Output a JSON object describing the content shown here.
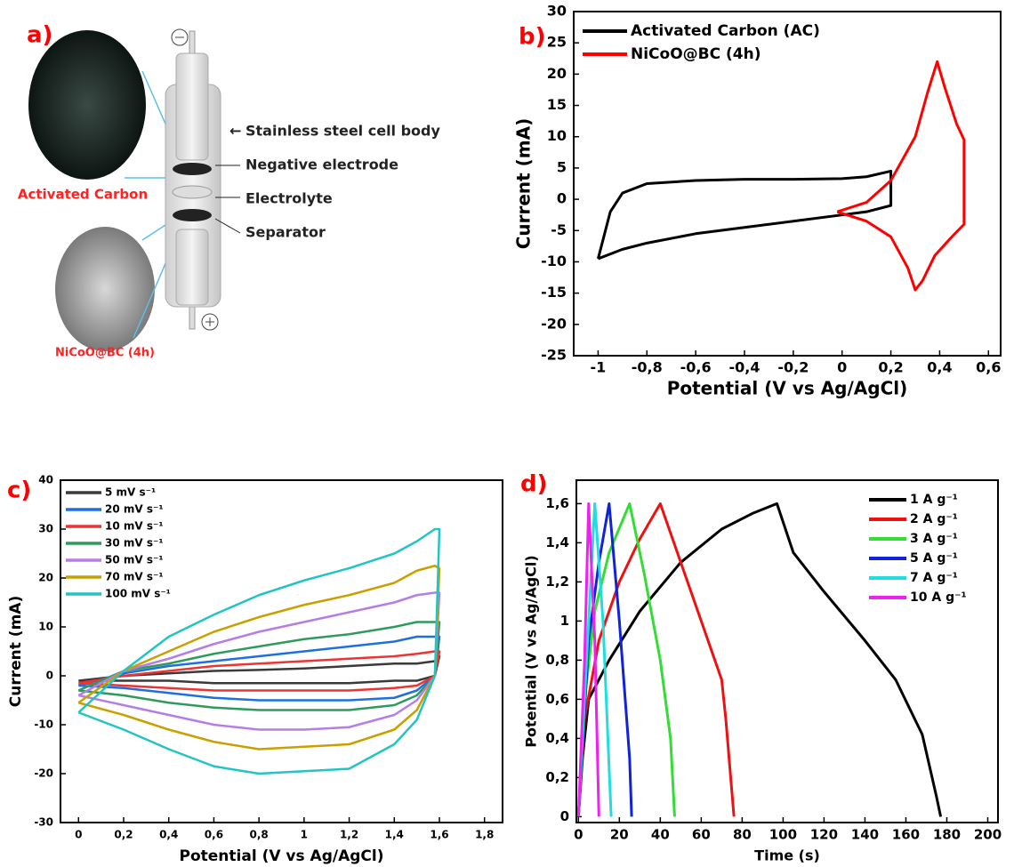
{
  "diagram": {
    "panel_label": "a)",
    "parts": [
      "Stainless steel cell body",
      "Negative electrode",
      "Electrolyte",
      "Separator"
    ],
    "top_material": "Activated Carbon",
    "bottom_material": "NiCoO@BC (4h)"
  },
  "chart_data": [
    {
      "type": "line",
      "panel_label": "b)",
      "xlabel": "Potential (V vs Ag/AgCl)",
      "ylabel": "Current (mA)",
      "legend": "upper left",
      "xlim": [
        -1.1,
        0.65
      ],
      "ylim": [
        -25,
        30
      ],
      "xticks": [
        -1,
        {
          "value": -0.8,
          "label": "-0,8"
        },
        {
          "value": -0.6,
          "label": "-0,6"
        },
        {
          "value": -0.4,
          "label": "-0,4"
        },
        {
          "value": -0.2,
          "label": "-0,2"
        },
        0,
        {
          "value": 0.2,
          "label": "0,2"
        },
        {
          "value": 0.4,
          "label": "0,4"
        },
        {
          "value": 0.6,
          "label": "0,6"
        }
      ],
      "yticks": [
        -25,
        -20,
        -15,
        -10,
        -5,
        0,
        5,
        10,
        15,
        20,
        25,
        30
      ],
      "series": [
        {
          "name": "Activated Carbon (AC)",
          "color": "#000000",
          "x": [
            -1,
            -0.95,
            -0.9,
            -0.8,
            -0.6,
            -0.4,
            -0.2,
            0,
            0.1,
            0.2,
            0.2,
            0.1,
            0,
            -0.2,
            -0.4,
            -0.6,
            -0.8,
            -0.9,
            -1
          ],
          "values": [
            -9.5,
            -2,
            1,
            2.5,
            3,
            3.2,
            3.2,
            3.3,
            3.6,
            4.5,
            -1,
            -2,
            -2.5,
            -3.5,
            -4.5,
            -5.5,
            -7,
            -8,
            -9.5
          ]
        },
        {
          "name": "NiCoO@BC (4h)",
          "color": "#ff0000",
          "x": [
            -0.02,
            0.1,
            0.2,
            0.3,
            0.35,
            0.39,
            0.42,
            0.47,
            0.5,
            0.5,
            0.45,
            0.38,
            0.33,
            0.3,
            0.27,
            0.2,
            0.1,
            -0.02
          ],
          "values": [
            -2,
            -0.5,
            3,
            10,
            17,
            22,
            18,
            12,
            9.5,
            -4,
            -6,
            -9,
            -13,
            -14.5,
            -11,
            -6,
            -3.5,
            -2
          ]
        }
      ]
    },
    {
      "type": "line",
      "panel_label": "c)",
      "xlabel": "Potential (V vs Ag/AgCl)",
      "ylabel": "Current (mA)",
      "legend": "upper left",
      "xlim": [
        -0.08,
        1.88
      ],
      "ylim": [
        -30,
        40
      ],
      "xticks": [
        0,
        {
          "value": 0.2,
          "label": "0,2"
        },
        {
          "value": 0.4,
          "label": "0,4"
        },
        {
          "value": 0.6,
          "label": "0,6"
        },
        {
          "value": 0.8,
          "label": "0,8"
        },
        1,
        {
          "value": 1.2,
          "label": "1,2"
        },
        {
          "value": 1.4,
          "label": "1,4"
        },
        {
          "value": 1.6,
          "label": "1,6"
        },
        {
          "value": 1.8,
          "label": "1,8"
        }
      ],
      "yticks": [
        -30,
        -20,
        -10,
        0,
        10,
        20,
        30,
        40
      ],
      "x": [
        0,
        0.2,
        0.4,
        0.6,
        0.8,
        1.0,
        1.2,
        1.4,
        1.5,
        1.58,
        1.6,
        1.58,
        1.5,
        1.4,
        1.2,
        1.0,
        0.8,
        0.6,
        0.4,
        0.2,
        0
      ],
      "series": [
        {
          "name": "5 mV s⁻¹",
          "color": "#3a3a3a",
          "values": [
            -1,
            0,
            0.5,
            1,
            1.2,
            1.5,
            2,
            2.5,
            2.5,
            3,
            4,
            0,
            -1,
            -1,
            -1.5,
            -1.5,
            -1.5,
            -1.5,
            -1,
            -1,
            -1
          ]
        },
        {
          "name": "20 mV s⁻¹",
          "color": "#1f6fe0",
          "values": [
            -2,
            0.5,
            2,
            3,
            4,
            5,
            6,
            7,
            8,
            8,
            8,
            0,
            -3,
            -4.5,
            -5,
            -5,
            -5,
            -4.5,
            -3.5,
            -2.5,
            -2
          ]
        },
        {
          "name": "10 mV s⁻¹",
          "color": "#ee3333",
          "values": [
            -1.5,
            0,
            1,
            2,
            2.5,
            3,
            3.5,
            4,
            4.5,
            5,
            5,
            0,
            -2,
            -2.5,
            -3,
            -3,
            -3,
            -3,
            -2.5,
            -2,
            -1.5
          ]
        },
        {
          "name": "30 mV s⁻¹",
          "color": "#2e9b5c",
          "values": [
            -3,
            1,
            2.5,
            4.5,
            6,
            7.5,
            8.5,
            10,
            11,
            11,
            11,
            0,
            -4,
            -6,
            -7,
            -7,
            -7,
            -6.5,
            -5.5,
            -4,
            -3
          ]
        },
        {
          "name": "50 mV s⁻¹",
          "color": "#b57ee6",
          "values": [
            -4,
            1,
            3.5,
            6.5,
            9,
            11,
            13,
            15,
            16.5,
            17,
            17,
            0,
            -5,
            -8,
            -10.5,
            -11,
            -11,
            -10,
            -8,
            -6,
            -4
          ]
        },
        {
          "name": "70 mV s⁻¹",
          "color": "#c9a000",
          "values": [
            -5.5,
            1,
            5,
            9,
            12,
            14.5,
            16.5,
            19,
            21.5,
            22.5,
            22,
            0,
            -7,
            -11,
            -14,
            -14.5,
            -15,
            -13.5,
            -11,
            -8,
            -5.5
          ]
        },
        {
          "name": "100 mV s⁻¹",
          "color": "#22c4c4",
          "values": [
            -7.5,
            1,
            8,
            12.5,
            16.5,
            19.5,
            22,
            25,
            27.5,
            30,
            30,
            0,
            -9,
            -14,
            -19,
            -19.5,
            -20,
            -18.5,
            -15,
            -11,
            -7.5
          ]
        }
      ]
    },
    {
      "type": "line",
      "panel_label": "d)",
      "xlabel": "Time (s)",
      "ylabel": "Potential (V vs Ag/AgCl)",
      "legend": "upper right",
      "xlim": [
        -1,
        205
      ],
      "ylim": [
        -0.03,
        1.72
      ],
      "xticks": [
        0,
        20,
        40,
        60,
        80,
        100,
        120,
        140,
        160,
        180,
        200
      ],
      "yticks": [
        0,
        {
          "value": 0.2,
          "label": "0,2"
        },
        {
          "value": 0.4,
          "label": "0,4"
        },
        {
          "value": 0.6,
          "label": "0,6"
        },
        {
          "value": 0.8,
          "label": "0,8"
        },
        1,
        {
          "value": 1.2,
          "label": "1,2"
        },
        {
          "value": 1.4,
          "label": "1,4"
        },
        {
          "value": 1.6,
          "label": "1,6"
        }
      ],
      "series": [
        {
          "name": "1 A g⁻¹",
          "color": "#000000",
          "x": [
            0,
            2,
            5,
            15,
            30,
            50,
            70,
            85,
            97,
            105,
            120,
            140,
            155,
            168,
            175,
            177
          ],
          "values": [
            0,
            0.3,
            0.6,
            0.8,
            1.05,
            1.3,
            1.47,
            1.55,
            1.6,
            1.35,
            1.15,
            0.9,
            0.7,
            0.42,
            0.1,
            0
          ]
        },
        {
          "name": "2 A g⁻¹",
          "color": "#ee1111",
          "x": [
            0,
            3,
            10,
            20,
            30,
            40,
            50,
            60,
            70,
            72,
            76
          ],
          "values": [
            0,
            0.5,
            0.9,
            1.2,
            1.42,
            1.6,
            1.3,
            1.0,
            0.7,
            0.5,
            0
          ]
        },
        {
          "name": "3 A g⁻¹",
          "color": "#33dd33",
          "x": [
            0,
            3,
            8,
            15,
            25,
            32,
            40,
            45,
            47
          ],
          "values": [
            0,
            0.6,
            1.05,
            1.35,
            1.6,
            1.25,
            0.8,
            0.4,
            0
          ]
        },
        {
          "name": "5 A g⁻¹",
          "color": "#1122dd",
          "x": [
            0,
            5,
            10,
            15,
            20,
            25,
            26
          ],
          "values": [
            0,
            0.9,
            1.3,
            1.6,
            1.0,
            0.3,
            0
          ]
        },
        {
          "name": "7 A g⁻¹",
          "color": "#22dddd",
          "x": [
            0,
            4,
            8,
            12,
            16
          ],
          "values": [
            0,
            0.8,
            1.6,
            1.0,
            0
          ]
        },
        {
          "name": "10 A g⁻¹",
          "color": "#ee22ee",
          "x": [
            0,
            3,
            5,
            8,
            10
          ],
          "values": [
            0,
            0.8,
            1.6,
            0.9,
            0
          ]
        }
      ]
    }
  ]
}
